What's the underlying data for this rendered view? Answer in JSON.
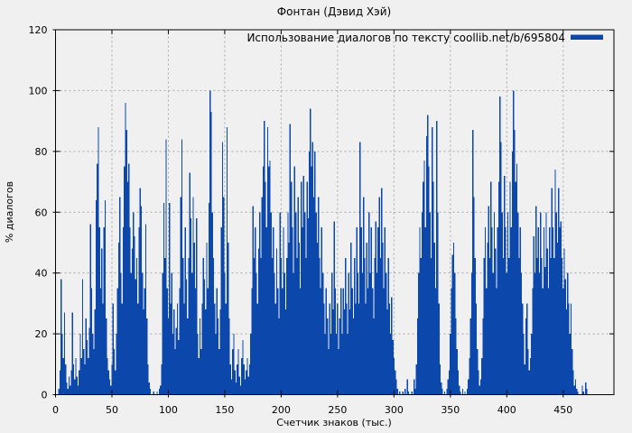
{
  "title": "Фонтан (Дэвид Хэй)",
  "colors": {
    "background": "#f0f0f0",
    "bar": "#0c47ab",
    "grid": "#a6a6a6",
    "axis": "#000000",
    "text": "#000000"
  },
  "chart_data": {
    "type": "bar",
    "title": "Фонтан (Дэвид Хэй)",
    "legend": "Использование диалогов по тексту coollib.net/b/695804",
    "legend_position": "top-right",
    "xlabel": "Счетчик знаков (тыс.)",
    "ylabel": "% диалогов",
    "xlim": [
      0,
      495
    ],
    "ylim": [
      0,
      120
    ],
    "x_ticks": [
      0,
      50,
      100,
      150,
      200,
      250,
      300,
      350,
      400,
      450
    ],
    "y_ticks": [
      0,
      20,
      40,
      60,
      80,
      100,
      120
    ],
    "grid": true,
    "bar_color": "#0c47ab",
    "x_start": 0,
    "x_step": 1,
    "values": [
      0,
      0,
      0,
      2,
      8,
      38,
      20,
      12,
      27,
      10,
      4,
      2,
      6,
      3,
      8,
      27,
      10,
      5,
      12,
      6,
      3,
      8,
      20,
      12,
      38,
      15,
      10,
      25,
      18,
      12,
      22,
      56,
      35,
      20,
      15,
      28,
      64,
      76,
      88,
      55,
      35,
      48,
      30,
      55,
      64,
      25,
      12,
      8,
      5,
      3,
      10,
      30,
      15,
      8,
      20,
      35,
      50,
      65,
      40,
      30,
      55,
      75,
      96,
      87,
      70,
      76,
      55,
      40,
      48,
      60,
      52,
      38,
      45,
      30,
      55,
      68,
      62,
      40,
      28,
      35,
      56,
      25,
      10,
      4,
      2,
      0,
      0,
      1,
      0,
      0,
      1,
      0,
      2,
      3,
      10,
      40,
      63,
      45,
      84,
      35,
      25,
      63,
      30,
      40,
      20,
      28,
      15,
      22,
      30,
      18,
      35,
      65,
      84,
      45,
      30,
      55,
      38,
      25,
      45,
      73,
      58,
      40,
      65,
      50,
      35,
      58,
      20,
      12,
      25,
      15,
      30,
      45,
      38,
      28,
      50,
      35,
      63,
      100,
      93,
      60,
      45,
      30,
      20,
      35,
      25,
      15,
      28,
      55,
      83,
      65,
      40,
      30,
      88,
      50,
      25,
      10,
      5,
      15,
      20,
      8,
      4,
      10,
      15,
      6,
      3,
      12,
      18,
      10,
      5,
      8,
      12,
      6,
      10,
      20,
      35,
      62,
      45,
      55,
      40,
      30,
      48,
      60,
      45,
      65,
      75,
      90,
      70,
      55,
      88,
      75,
      77,
      60,
      45,
      55,
      40,
      30,
      48,
      35,
      25,
      60,
      45,
      35,
      55,
      40,
      28,
      45,
      60,
      50,
      89,
      70,
      55,
      40,
      75,
      60,
      45,
      65,
      50,
      35,
      70,
      55,
      72,
      60,
      45,
      70,
      58,
      80,
      94,
      75,
      83,
      65,
      80,
      60,
      50,
      65,
      45,
      35,
      55,
      40,
      30,
      20,
      35,
      25,
      15,
      30,
      20,
      40,
      28,
      57,
      35,
      20,
      30,
      15,
      25,
      35,
      20,
      35,
      28,
      45,
      30,
      20,
      40,
      28,
      50,
      35,
      25,
      45,
      30,
      55,
      40,
      30,
      83,
      55,
      40,
      65,
      45,
      30,
      50,
      35,
      60,
      40,
      55,
      35,
      25,
      45,
      57,
      40,
      55,
      65,
      45,
      68,
      50,
      35,
      55,
      40,
      28,
      45,
      30,
      20,
      32,
      18,
      12,
      8,
      5,
      2,
      0,
      1,
      0,
      0,
      1,
      0,
      2,
      0,
      5,
      1,
      0,
      0,
      1,
      0,
      5,
      2,
      10,
      25,
      40,
      55,
      45,
      60,
      70,
      77,
      55,
      85,
      92,
      75,
      60,
      45,
      88,
      70,
      50,
      35,
      90,
      60,
      30,
      10,
      4,
      2,
      0,
      1,
      0,
      2,
      5,
      8,
      20,
      35,
      46,
      50,
      40,
      25,
      15,
      8,
      3,
      1,
      0,
      2,
      0,
      1,
      0,
      2,
      5,
      12,
      25,
      40,
      87,
      65,
      45,
      30,
      15,
      8,
      3,
      5,
      12,
      25,
      45,
      55,
      35,
      50,
      62,
      45,
      70,
      55,
      40,
      60,
      48,
      35,
      55,
      70,
      98,
      83,
      60,
      45,
      72,
      55,
      40,
      60,
      45,
      70,
      55,
      80,
      100,
      87,
      70,
      76,
      60,
      45,
      55,
      40,
      30,
      20,
      10,
      25,
      30,
      15,
      8,
      12,
      20,
      35,
      52,
      40,
      62,
      45,
      55,
      40,
      60,
      45,
      35,
      55,
      42,
      60,
      48,
      35,
      55,
      45,
      68,
      55,
      45,
      74,
      60,
      50,
      68,
      55,
      57,
      45,
      35,
      48,
      38,
      28,
      40,
      30,
      20,
      30,
      15,
      8,
      3,
      5,
      2,
      1,
      0,
      0,
      0,
      3,
      1,
      0,
      4,
      2,
      0,
      0,
      0
    ]
  }
}
